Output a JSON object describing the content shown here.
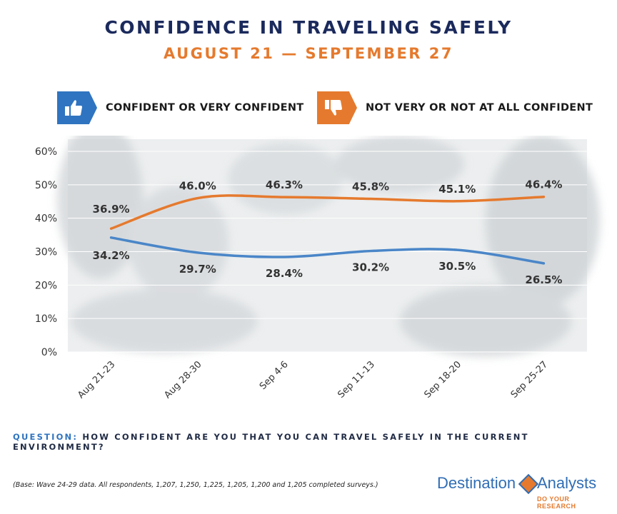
{
  "header": {
    "title": "CONFIDENCE IN TRAVELING SAFELY",
    "subtitle": "AUGUST 21 — SEPTEMBER 27"
  },
  "legend": [
    {
      "label": "CONFIDENT OR VERY CONFIDENT",
      "icon": "thumbs-up-icon",
      "color": "#2f74c0"
    },
    {
      "label": "NOT VERY OR NOT AT ALL CONFIDENT",
      "icon": "thumbs-down-icon",
      "color": "#e57a2e"
    }
  ],
  "chart_data": {
    "type": "line",
    "categories": [
      "Aug 21-23",
      "Aug 28-30",
      "Sep 4-6",
      "Sep 11-13",
      "Sep 18-20",
      "Sep 25-27"
    ],
    "series": [
      {
        "name": "CONFIDENT OR VERY CONFIDENT",
        "values": [
          34.2,
          29.7,
          28.4,
          30.2,
          30.5,
          26.5
        ],
        "labels": [
          "34.2%",
          "29.7%",
          "28.4%",
          "30.2%",
          "30.5%",
          "26.5%"
        ],
        "color": "#4a86c8"
      },
      {
        "name": "NOT VERY OR NOT AT ALL CONFIDENT",
        "values": [
          36.9,
          46.0,
          46.3,
          45.8,
          45.1,
          46.4
        ],
        "labels": [
          "36.9%",
          "46.0%",
          "46.3%",
          "45.8%",
          "45.1%",
          "46.4%"
        ],
        "color": "#e57a2e"
      }
    ],
    "ylim": [
      0,
      60
    ],
    "yticks": [
      "0%",
      "10%",
      "20%",
      "30%",
      "40%",
      "50%",
      "60%"
    ],
    "grid": true
  },
  "footer": {
    "question_prefix": "QUESTION:",
    "question_text": " HOW CONFIDENT ARE YOU THAT YOU CAN TRAVEL SAFELY IN THE CURRENT ENVIRONMENT?",
    "base_note": "(Base: Wave 24-29 data. All respondents, 1,207, 1,250, 1,225, 1,205, 1,200 and 1,205 completed surveys.)"
  },
  "logo": {
    "name_part1": "Destination",
    "name_part2": "Analysts",
    "tagline": "DO YOUR RESEARCH"
  }
}
